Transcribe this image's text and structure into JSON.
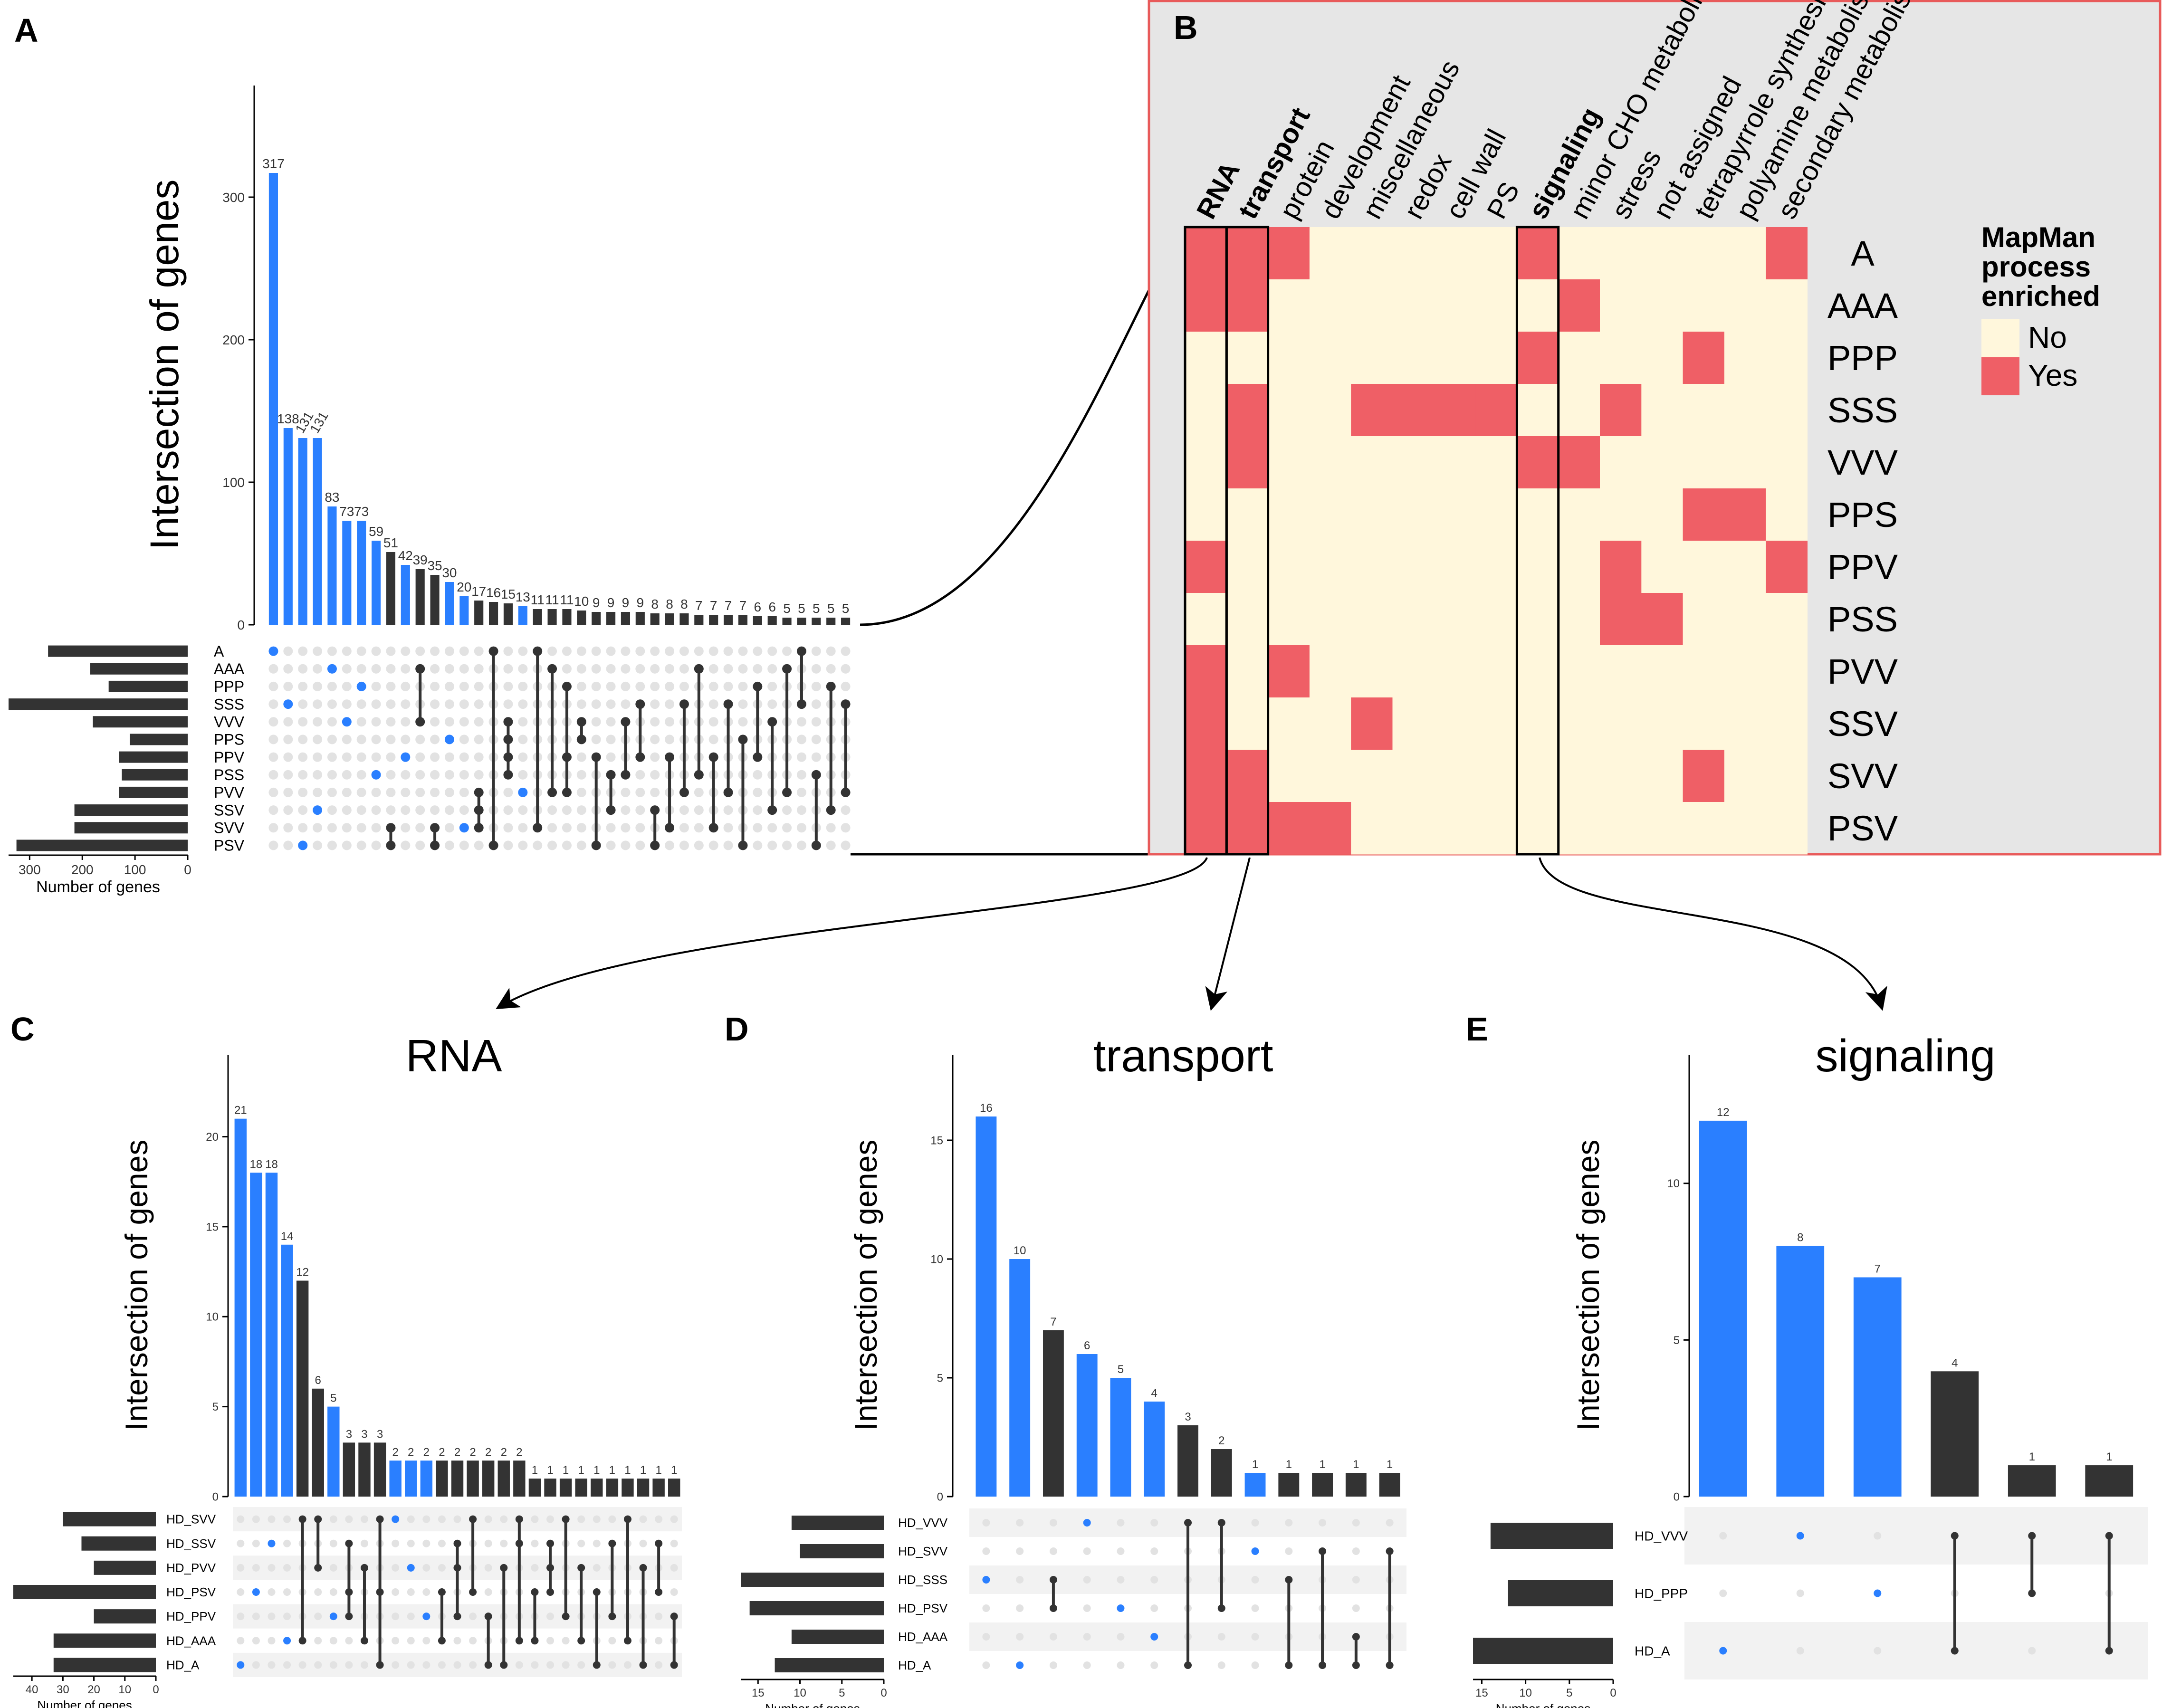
{
  "colors": {
    "blue": "#2a7fff",
    "dark": "#333333",
    "dot_off": "#e2e2e2",
    "heat_no": "#fff7dc",
    "heat_yes": "#ef5f66",
    "panel_bg": "#e6e6e6",
    "panel_border": "#e85a5a",
    "stripe": "#f2f2f2"
  },
  "chart_data": [
    {
      "type": "bar",
      "panel_label": "A",
      "title": "",
      "ylabel": "Intersection of genes",
      "size_label": "Number of genes",
      "yticks": [
        0,
        100,
        200,
        300
      ],
      "ylim": [
        0,
        365
      ],
      "size_ticks": [
        300,
        200,
        100,
        0
      ],
      "size_max": 340,
      "show_value_labels": true,
      "sets": [
        "A",
        "AAA",
        "PPP",
        "SSS",
        "VVV",
        "PPS",
        "PPV",
        "PSS",
        "PVV",
        "SSV",
        "SVV",
        "PSV"
      ],
      "set_sizes": [
        265,
        185,
        150,
        340,
        180,
        110,
        130,
        125,
        130,
        215,
        215,
        325
      ],
      "values": [
        317,
        138,
        131,
        131,
        83,
        73,
        73,
        59,
        51,
        42,
        39,
        35,
        30,
        20,
        17,
        16,
        15,
        13,
        11,
        11,
        11,
        10,
        9,
        9,
        9,
        9,
        8,
        8,
        8,
        7,
        7,
        7,
        7,
        6,
        6,
        5,
        5,
        5,
        5,
        5
      ],
      "highlight": [
        true,
        true,
        true,
        true,
        true,
        true,
        true,
        true,
        false,
        true,
        false,
        false,
        true,
        true,
        false,
        false,
        false,
        true,
        false,
        false,
        false,
        false,
        false,
        false,
        false,
        false,
        false,
        false,
        false,
        false,
        false,
        false,
        false,
        false,
        false,
        false,
        false,
        false,
        false,
        false
      ],
      "membership": [
        [
          0
        ],
        [
          3
        ],
        [
          11
        ],
        [
          9
        ],
        [
          1
        ],
        [
          4
        ],
        [
          2
        ],
        [
          7
        ],
        [
          10,
          11
        ],
        [
          6
        ],
        [
          1,
          4
        ],
        [
          10,
          11
        ],
        [
          5
        ],
        [
          10
        ],
        [
          8,
          9,
          10
        ],
        [
          0,
          11
        ],
        [
          4,
          5,
          6,
          7
        ],
        [
          8
        ],
        [
          0,
          10
        ],
        [
          1,
          8
        ],
        [
          2,
          6,
          8
        ],
        [
          4,
          5
        ],
        [
          6,
          11
        ],
        [
          7,
          9
        ],
        [
          4,
          7
        ],
        [
          3,
          6
        ],
        [
          9,
          11
        ],
        [
          6,
          10
        ],
        [
          3,
          8
        ],
        [
          1,
          7
        ],
        [
          6,
          10
        ],
        [
          3,
          8
        ],
        [
          5,
          11
        ],
        [
          2,
          6
        ],
        [
          4,
          9
        ],
        [
          1,
          8
        ],
        [
          0,
          3
        ],
        [
          7,
          11
        ],
        [
          2,
          9
        ],
        [
          3,
          8
        ]
      ]
    },
    {
      "type": "bar",
      "panel_label": "C",
      "title": "RNA",
      "ylabel": "Intersection of genes",
      "size_label": "Number of genes",
      "yticks": [
        0,
        5,
        10,
        15,
        20
      ],
      "ylim": [
        0,
        23.5
      ],
      "size_ticks": [
        40,
        30,
        20,
        10,
        0
      ],
      "size_max": 46,
      "show_value_labels": true,
      "sets": [
        "HD_SVV",
        "HD_SSV",
        "HD_PVV",
        "HD_PSV",
        "HD_PPV",
        "HD_AAA",
        "HD_A"
      ],
      "set_sizes": [
        30,
        24,
        20,
        46,
        20,
        33,
        33
      ],
      "values": [
        21,
        18,
        18,
        14,
        12,
        6,
        5,
        3,
        3,
        3,
        2,
        2,
        2,
        2,
        2,
        2,
        2,
        2,
        2,
        1,
        1,
        1,
        1,
        1,
        1,
        1,
        1,
        1,
        1
      ],
      "highlight": [
        true,
        true,
        true,
        true,
        false,
        false,
        true,
        false,
        false,
        false,
        true,
        true,
        true,
        false,
        false,
        false,
        false,
        false,
        false,
        false,
        false,
        false,
        false,
        false,
        false,
        false,
        false,
        false,
        false
      ],
      "membership": [
        [
          6
        ],
        [
          3
        ],
        [
          1
        ],
        [
          5
        ],
        [
          0,
          5
        ],
        [
          0,
          2
        ],
        [
          4
        ],
        [
          1,
          3,
          4
        ],
        [
          2,
          5
        ],
        [
          0,
          3,
          6
        ],
        [
          0
        ],
        [
          2
        ],
        [
          4
        ],
        [
          3,
          5
        ],
        [
          1,
          2,
          4
        ],
        [
          0,
          3
        ],
        [
          4,
          6
        ],
        [
          2,
          6
        ],
        [
          0,
          1,
          5
        ],
        [
          3,
          5
        ],
        [
          1,
          2,
          3
        ],
        [
          0,
          4
        ],
        [
          2,
          5
        ],
        [
          3,
          6
        ],
        [
          1,
          4
        ],
        [
          0,
          5
        ],
        [
          2,
          6
        ],
        [
          1,
          3
        ],
        [
          4,
          6
        ]
      ]
    },
    {
      "type": "bar",
      "panel_label": "D",
      "title": "transport",
      "ylabel": "Intersection of genes",
      "size_label": "Number of genes",
      "yticks": [
        0,
        5,
        10,
        15
      ],
      "ylim": [
        0,
        17.8
      ],
      "size_ticks": [
        15,
        10,
        5,
        0
      ],
      "size_max": 17,
      "show_value_labels": true,
      "sets": [
        "HD_VVV",
        "HD_SVV",
        "HD_SSS",
        "HD_PSV",
        "HD_AAA",
        "HD_A"
      ],
      "set_sizes": [
        11,
        10,
        17,
        16,
        11,
        13
      ],
      "values": [
        16,
        10,
        7,
        6,
        5,
        4,
        3,
        2,
        1,
        1,
        1,
        1,
        1
      ],
      "highlight": [
        true,
        true,
        false,
        true,
        true,
        true,
        false,
        false,
        true,
        false,
        false,
        false,
        false
      ],
      "membership": [
        [
          2
        ],
        [
          5
        ],
        [
          2,
          3
        ],
        [
          0
        ],
        [
          3
        ],
        [
          4
        ],
        [
          0,
          5
        ],
        [
          0,
          3
        ],
        [
          1
        ],
        [
          2,
          5
        ],
        [
          1,
          5
        ],
        [
          4,
          5
        ],
        [
          1,
          5
        ]
      ]
    },
    {
      "type": "bar",
      "panel_label": "E",
      "title": "signaling",
      "ylabel": "Intersection of genes",
      "size_label": "Number of genes",
      "yticks": [
        0,
        5,
        10
      ],
      "ylim": [
        0,
        13.5
      ],
      "size_ticks": [
        15,
        10,
        5,
        0
      ],
      "size_max": 16,
      "show_value_labels": true,
      "sets": [
        "HD_VVV",
        "HD_PPP",
        "HD_A"
      ],
      "set_sizes": [
        14,
        12,
        16
      ],
      "values": [
        12,
        8,
        7,
        4,
        1,
        1
      ],
      "highlight": [
        true,
        true,
        true,
        false,
        false,
        false
      ],
      "membership": [
        [
          2
        ],
        [
          0
        ],
        [
          1
        ],
        [
          0,
          2
        ],
        [
          0,
          1
        ],
        [
          0,
          2
        ]
      ]
    },
    {
      "type": "heatmap",
      "panel_label": "B",
      "legend_title": [
        "MapMan",
        "process",
        "enriched"
      ],
      "legend_labels": [
        "No",
        "Yes"
      ],
      "columns": [
        "RNA",
        "transport",
        "protein",
        "development",
        "miscellaneous",
        "redox",
        "cell wall",
        "PS",
        "signaling",
        "minor CHO metabolism",
        "stress",
        "not assigned",
        "tetrapyrrole synthesis",
        "polyamine metabolism",
        "secondary metabolism"
      ],
      "bold_columns": [
        "RNA",
        "transport",
        "signaling"
      ],
      "rows": [
        "A",
        "AAA",
        "PPP",
        "SSS",
        "VVV",
        "PPS",
        "PPV",
        "PSS",
        "PVV",
        "SSV",
        "SVV",
        "PSV"
      ],
      "values": [
        [
          1,
          1,
          1,
          0,
          0,
          0,
          0,
          0,
          1,
          0,
          0,
          0,
          0,
          0,
          1
        ],
        [
          1,
          1,
          0,
          0,
          0,
          0,
          0,
          0,
          0,
          1,
          0,
          0,
          0,
          0,
          0
        ],
        [
          0,
          0,
          0,
          0,
          0,
          0,
          0,
          0,
          1,
          0,
          0,
          0,
          1,
          0,
          0
        ],
        [
          0,
          1,
          0,
          0,
          1,
          1,
          1,
          1,
          0,
          0,
          1,
          0,
          0,
          0,
          0
        ],
        [
          0,
          1,
          0,
          0,
          0,
          0,
          0,
          0,
          1,
          1,
          0,
          0,
          0,
          0,
          0
        ],
        [
          0,
          0,
          0,
          0,
          0,
          0,
          0,
          0,
          0,
          0,
          0,
          0,
          1,
          1,
          0
        ],
        [
          1,
          0,
          0,
          0,
          0,
          0,
          0,
          0,
          0,
          0,
          1,
          0,
          0,
          0,
          1
        ],
        [
          0,
          0,
          0,
          0,
          0,
          0,
          0,
          0,
          0,
          0,
          1,
          1,
          0,
          0,
          0
        ],
        [
          1,
          0,
          1,
          0,
          0,
          0,
          0,
          0,
          0,
          0,
          0,
          0,
          0,
          0,
          0
        ],
        [
          1,
          0,
          0,
          0,
          1,
          0,
          0,
          0,
          0,
          0,
          0,
          0,
          0,
          0,
          0
        ],
        [
          1,
          1,
          0,
          0,
          0,
          0,
          0,
          0,
          0,
          0,
          0,
          0,
          1,
          0,
          0
        ],
        [
          1,
          1,
          1,
          1,
          0,
          0,
          0,
          0,
          0,
          0,
          0,
          0,
          0,
          0,
          0
        ]
      ]
    }
  ]
}
